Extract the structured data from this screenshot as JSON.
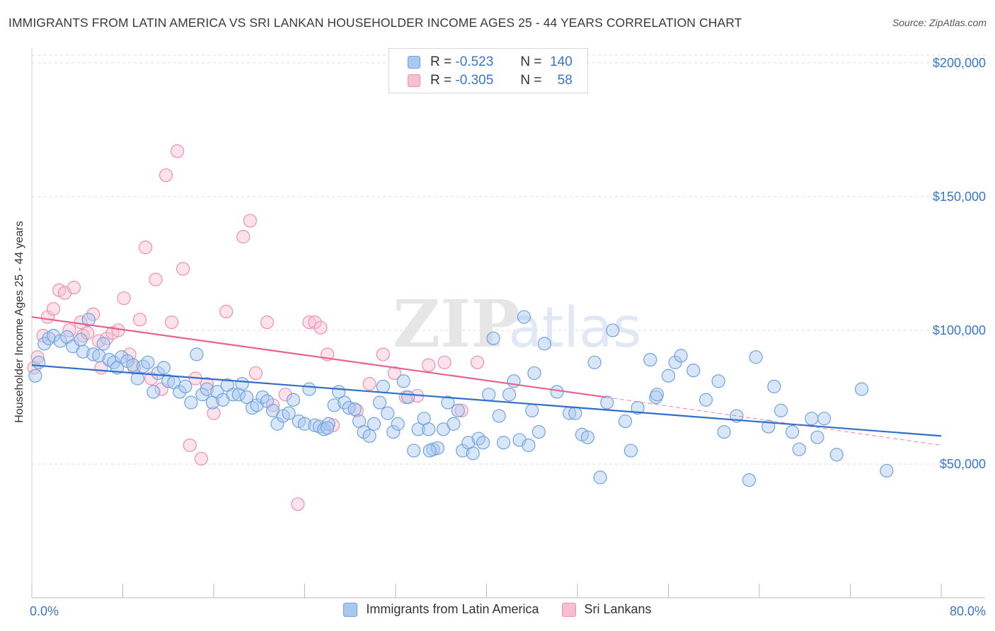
{
  "colors": {
    "blue": "#6fa3e0",
    "blue_fill": "#a9c8f0",
    "blue_line": "#2f6fcc",
    "pink": "#ef8fb0",
    "pink_fill": "#f6bfd2",
    "pink_line": "#e8628f",
    "axis_text": "#3a76c8"
  },
  "chart_data": {
    "type": "scatter",
    "title": "IMMIGRANTS FROM LATIN AMERICA VS SRI LANKAN HOUSEHOLDER INCOME AGES 25 - 44 YEARS CORRELATION CHART",
    "source": "Source: ZipAtlas.com",
    "xlabel": "",
    "ylabel": "Householder Income Ages 25 - 44 years",
    "xlim": [
      0,
      80
    ],
    "ylim": [
      0,
      205000
    ],
    "x_tick_labels": [
      "0.0%",
      "80.0%"
    ],
    "y_ticks": [
      50000,
      100000,
      150000,
      200000
    ],
    "y_tick_labels": [
      "$50,000",
      "$100,000",
      "$150,000",
      "$200,000"
    ],
    "legend": [
      {
        "name": "Immigrants from Latin America",
        "R_label": "R =",
        "R": "-0.523",
        "N_label": "N =",
        "N": "140"
      },
      {
        "name": "Sri Lankans",
        "R_label": "R =",
        "R": "-0.305",
        "N_label": "N =",
        "N": "58"
      }
    ],
    "watermark": "ZIPatlas",
    "series": [
      {
        "name": "Immigrants from Latin America",
        "trend": {
          "x0": 0,
          "y0": 87000,
          "x1": 80,
          "y1": 60500
        },
        "points": [
          [
            0.3,
            83000
          ],
          [
            0.6,
            88000
          ],
          [
            1.1,
            95000
          ],
          [
            1.5,
            97000
          ],
          [
            1.9,
            98000
          ],
          [
            2.5,
            96000
          ],
          [
            3.1,
            97500
          ],
          [
            3.6,
            94000
          ],
          [
            4.3,
            96500
          ],
          [
            4.5,
            92000
          ],
          [
            5.0,
            104000
          ],
          [
            5.4,
            91000
          ],
          [
            5.9,
            90500
          ],
          [
            6.3,
            95000
          ],
          [
            6.8,
            89000
          ],
          [
            7.2,
            88000
          ],
          [
            7.5,
            86000
          ],
          [
            7.9,
            90000
          ],
          [
            8.4,
            88500
          ],
          [
            8.9,
            87000
          ],
          [
            9.3,
            82000
          ],
          [
            9.8,
            86500
          ],
          [
            10.2,
            88000
          ],
          [
            10.7,
            77000
          ],
          [
            11.1,
            84000
          ],
          [
            11.6,
            86000
          ],
          [
            12.0,
            81000
          ],
          [
            12.5,
            80500
          ],
          [
            13.0,
            77000
          ],
          [
            13.5,
            79000
          ],
          [
            14.0,
            73000
          ],
          [
            14.5,
            91000
          ],
          [
            15.0,
            76000
          ],
          [
            15.4,
            78000
          ],
          [
            15.9,
            73000
          ],
          [
            16.3,
            77000
          ],
          [
            16.8,
            74000
          ],
          [
            17.2,
            79500
          ],
          [
            17.7,
            76000
          ],
          [
            18.2,
            76000
          ],
          [
            18.5,
            80000
          ],
          [
            18.9,
            75000
          ],
          [
            19.4,
            71000
          ],
          [
            19.8,
            72000
          ],
          [
            20.3,
            75000
          ],
          [
            20.7,
            73500
          ],
          [
            21.2,
            70000
          ],
          [
            21.6,
            65000
          ],
          [
            22.1,
            68000
          ],
          [
            22.6,
            69000
          ],
          [
            23.0,
            74000
          ],
          [
            23.5,
            66000
          ],
          [
            24.0,
            65000
          ],
          [
            24.4,
            78000
          ],
          [
            24.9,
            64500
          ],
          [
            25.3,
            64000
          ],
          [
            25.7,
            63000
          ],
          [
            26.1,
            65000
          ],
          [
            26.6,
            72000
          ],
          [
            27.0,
            77000
          ],
          [
            27.5,
            73000
          ],
          [
            27.9,
            71000
          ],
          [
            28.4,
            70500
          ],
          [
            28.8,
            66000
          ],
          [
            29.2,
            62000
          ],
          [
            29.7,
            60500
          ],
          [
            30.1,
            65000
          ],
          [
            30.6,
            73000
          ],
          [
            30.9,
            79000
          ],
          [
            31.3,
            69000
          ],
          [
            31.8,
            62000
          ],
          [
            32.2,
            65000
          ],
          [
            32.7,
            81000
          ],
          [
            33.1,
            75000
          ],
          [
            33.6,
            55000
          ],
          [
            34.0,
            63000
          ],
          [
            34.5,
            67000
          ],
          [
            34.9,
            63000
          ],
          [
            35.3,
            55500
          ],
          [
            35.7,
            56000
          ],
          [
            36.2,
            63000
          ],
          [
            36.6,
            73000
          ],
          [
            37.1,
            65000
          ],
          [
            37.5,
            70000
          ],
          [
            37.9,
            55000
          ],
          [
            38.4,
            58000
          ],
          [
            38.8,
            54000
          ],
          [
            39.3,
            59500
          ],
          [
            39.7,
            58000
          ],
          [
            40.2,
            76000
          ],
          [
            40.6,
            97000
          ],
          [
            41.1,
            68000
          ],
          [
            41.5,
            58000
          ],
          [
            42.0,
            76000
          ],
          [
            42.4,
            81000
          ],
          [
            42.9,
            59000
          ],
          [
            43.3,
            105000
          ],
          [
            43.7,
            57000
          ],
          [
            44.2,
            84000
          ],
          [
            44.6,
            62000
          ],
          [
            45.1,
            95000
          ],
          [
            46.2,
            77000
          ],
          [
            47.3,
            69000
          ],
          [
            47.8,
            69000
          ],
          [
            48.4,
            61000
          ],
          [
            48.9,
            60000
          ],
          [
            49.5,
            88000
          ],
          [
            50.0,
            45000
          ],
          [
            50.6,
            73000
          ],
          [
            51.1,
            100000
          ],
          [
            52.2,
            66000
          ],
          [
            52.7,
            55000
          ],
          [
            53.3,
            71000
          ],
          [
            54.4,
            89000
          ],
          [
            54.9,
            75000
          ],
          [
            55.0,
            76000
          ],
          [
            56.0,
            83000
          ],
          [
            56.6,
            88000
          ],
          [
            57.1,
            90500
          ],
          [
            58.2,
            85000
          ],
          [
            59.3,
            74000
          ],
          [
            60.4,
            81000
          ],
          [
            60.9,
            62000
          ],
          [
            62.0,
            68000
          ],
          [
            63.1,
            44000
          ],
          [
            63.7,
            90000
          ],
          [
            64.8,
            64000
          ],
          [
            65.3,
            79000
          ],
          [
            65.9,
            70000
          ],
          [
            66.9,
            62000
          ],
          [
            67.5,
            55500
          ],
          [
            68.6,
            67000
          ],
          [
            69.1,
            60000
          ],
          [
            69.7,
            67000
          ],
          [
            70.8,
            53500
          ],
          [
            73.0,
            78000
          ],
          [
            75.2,
            47500
          ],
          [
            35.0,
            55000
          ],
          [
            44.0,
            70000
          ],
          [
            26.0,
            63500
          ]
        ]
      },
      {
        "name": "Sri Lankans",
        "trend": {
          "x0": 0,
          "y0": 105000,
          "x1": 50.5,
          "y1": 75000
        },
        "trend_ext": {
          "x0": 50.5,
          "y0": 75000,
          "x1": 80,
          "y1": 57000
        },
        "points": [
          [
            0.2,
            86000
          ],
          [
            0.5,
            90000
          ],
          [
            1.0,
            98000
          ],
          [
            1.4,
            105000
          ],
          [
            1.9,
            108000
          ],
          [
            2.4,
            115000
          ],
          [
            2.9,
            114000
          ],
          [
            3.3,
            100000
          ],
          [
            3.7,
            116000
          ],
          [
            4.3,
            103000
          ],
          [
            4.5,
            98000
          ],
          [
            4.9,
            99000
          ],
          [
            5.4,
            106000
          ],
          [
            5.9,
            96000
          ],
          [
            6.1,
            86000
          ],
          [
            6.6,
            97000
          ],
          [
            7.1,
            99000
          ],
          [
            7.6,
            100000
          ],
          [
            8.1,
            112000
          ],
          [
            8.6,
            91000
          ],
          [
            9.0,
            86000
          ],
          [
            9.5,
            104000
          ],
          [
            10.0,
            131000
          ],
          [
            10.5,
            82000
          ],
          [
            10.9,
            119000
          ],
          [
            11.4,
            78000
          ],
          [
            11.8,
            158000
          ],
          [
            12.3,
            103000
          ],
          [
            12.8,
            167000
          ],
          [
            13.3,
            123000
          ],
          [
            13.9,
            57000
          ],
          [
            14.4,
            82000
          ],
          [
            14.9,
            52000
          ],
          [
            15.4,
            80000
          ],
          [
            16.0,
            69000
          ],
          [
            17.1,
            107000
          ],
          [
            18.6,
            135000
          ],
          [
            19.2,
            141000
          ],
          [
            19.7,
            84000
          ],
          [
            20.7,
            103000
          ],
          [
            21.2,
            72000
          ],
          [
            22.3,
            76000
          ],
          [
            23.4,
            35000
          ],
          [
            24.4,
            103000
          ],
          [
            24.9,
            103000
          ],
          [
            25.4,
            101000
          ],
          [
            26.0,
            91000
          ],
          [
            26.5,
            64500
          ],
          [
            28.6,
            70000
          ],
          [
            29.7,
            80000
          ],
          [
            30.9,
            91000
          ],
          [
            31.9,
            84000
          ],
          [
            32.9,
            75000
          ],
          [
            33.9,
            75500
          ],
          [
            34.9,
            87000
          ],
          [
            36.3,
            88000
          ],
          [
            37.8,
            70000
          ],
          [
            39.2,
            88000
          ]
        ]
      }
    ]
  }
}
